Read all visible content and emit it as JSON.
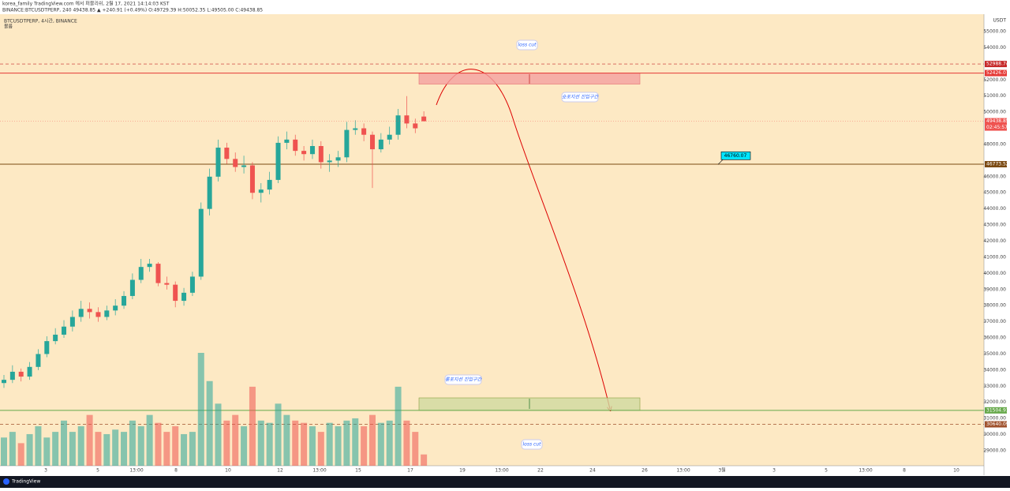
{
  "header": {
    "published": "korea_family TradingView.com 에서 퍼블리쉬, 2월 17, 2021 14:14:03 KST",
    "quote": "BINANCE:BTCUSDTPERP, 240 49438.85 ▲ +240.91 (+0.49%) O:49729.39 H:50052.35 L:49505.00 C:49438.85"
  },
  "footer": {
    "brand": "TradingView"
  },
  "chart_data": {
    "type": "candlestick",
    "title": "BTCUSDTPERP, 4시간, BINANCE",
    "volume_label": "볼륨",
    "currency": "USDT",
    "open": [
      33200,
      33400,
      33900,
      33600,
      34200,
      35000,
      35800,
      36200,
      36700,
      37300,
      37800,
      37600,
      37300,
      37700,
      38000,
      38600,
      39600,
      40400,
      40600,
      39400,
      39300,
      38300,
      38800,
      39800,
      44000,
      46000,
      47800,
      47100,
      46600,
      46700,
      45000,
      45200,
      45800,
      48100,
      48300,
      47600,
      47400,
      47900,
      46900,
      47000,
      47200,
      48900,
      49000,
      48600,
      47700,
      48300,
      48600,
      49800,
      49300,
      49729.39
    ],
    "high": [
      33700,
      34300,
      34100,
      34500,
      35300,
      36100,
      36600,
      37100,
      37700,
      38300,
      38200,
      37900,
      38000,
      38400,
      38900,
      40000,
      40900,
      40900,
      40700,
      39800,
      39500,
      39100,
      40100,
      44400,
      46500,
      48300,
      48100,
      47500,
      47300,
      46900,
      45600,
      46300,
      48500,
      48800,
      48600,
      47900,
      48300,
      48200,
      47400,
      47600,
      49400,
      49500,
      49300,
      48800,
      48700,
      49100,
      50200,
      51000,
      49600,
      50052.35
    ],
    "low": [
      32900,
      33200,
      33300,
      33400,
      34000,
      34800,
      35600,
      36000,
      36400,
      37000,
      37200,
      37000,
      37100,
      37400,
      37800,
      38400,
      39400,
      40100,
      39200,
      39000,
      37900,
      38000,
      38600,
      39600,
      43600,
      45700,
      46800,
      46300,
      46200,
      44600,
      44400,
      44900,
      45600,
      47700,
      47300,
      47000,
      47100,
      46500,
      46300,
      46600,
      46900,
      48600,
      48200,
      45300,
      47500,
      48000,
      48300,
      49000,
      48700,
      49505
    ],
    "close": [
      33400,
      33900,
      33600,
      34200,
      35000,
      35800,
      36200,
      36700,
      37300,
      37800,
      37600,
      37300,
      37700,
      38000,
      38600,
      39600,
      40400,
      40600,
      39400,
      39300,
      38300,
      38800,
      39800,
      44000,
      46000,
      47800,
      47100,
      46600,
      46700,
      45000,
      45200,
      45800,
      48100,
      48300,
      47600,
      47400,
      47900,
      46900,
      47000,
      47200,
      48900,
      49000,
      48600,
      47700,
      48300,
      48600,
      49800,
      49300,
      49000,
      49438.85
    ],
    "volume": [
      25,
      30,
      20,
      28,
      35,
      25,
      30,
      40,
      30,
      35,
      45,
      30,
      28,
      32,
      30,
      40,
      35,
      45,
      38,
      30,
      35,
      28,
      30,
      100,
      75,
      55,
      40,
      45,
      35,
      70,
      40,
      38,
      55,
      45,
      40,
      38,
      35,
      30,
      38,
      35,
      40,
      42,
      35,
      45,
      38,
      40,
      70,
      40,
      30,
      10
    ],
    "up_color": "#26a69a",
    "down_color": "#ef5350",
    "ylim": [
      56077,
      28070
    ],
    "yticks": [
      {
        "value": 55000,
        "label": "55000.00"
      },
      {
        "value": 54000,
        "label": "54000.00"
      },
      {
        "value": 52000,
        "label": "52000.00"
      },
      {
        "value": 51000,
        "label": "51000.00"
      },
      {
        "value": 50000,
        "label": "50000.00"
      },
      {
        "value": 48000,
        "label": "48000.00"
      },
      {
        "value": 46000,
        "label": "46000.00"
      },
      {
        "value": 45000,
        "label": "45000.00"
      },
      {
        "value": 44000,
        "label": "44000.00"
      },
      {
        "value": 43000,
        "label": "43000.00"
      },
      {
        "value": 42000,
        "label": "42000.00"
      },
      {
        "value": 41000,
        "label": "41000.00"
      },
      {
        "value": 40000,
        "label": "40000.00"
      },
      {
        "value": 39000,
        "label": "39000.00"
      },
      {
        "value": 38000,
        "label": "38000.00"
      },
      {
        "value": 37000,
        "label": "37000.00"
      },
      {
        "value": 36000,
        "label": "36000.00"
      },
      {
        "value": 35000,
        "label": "35000.00"
      },
      {
        "value": 34000,
        "label": "34000.00"
      },
      {
        "value": 33000,
        "label": "33000.00"
      },
      {
        "value": 32000,
        "label": "32000.00"
      },
      {
        "value": 31000,
        "label": "31000.00"
      },
      {
        "value": 30000,
        "label": "30000.00"
      },
      {
        "value": 29000,
        "label": "29000.00"
      }
    ],
    "x_labels": [
      "3",
      "5",
      "13:00",
      "8",
      "10",
      "12",
      "13:00",
      "15",
      "17",
      "19",
      "13:00",
      "22",
      "24",
      "26",
      "13:00",
      "3월",
      "3",
      "5",
      "13:00",
      "8",
      "10"
    ],
    "levels": [
      {
        "value": 52988.74,
        "color": "#c62828",
        "dashed": true
      },
      {
        "value": 52426.07,
        "color": "#e53935",
        "dashed": false
      },
      {
        "value": 46773.52,
        "color": "#7b4a12",
        "dashed": false
      },
      {
        "value": 31504.91,
        "color": "#66a84a",
        "dashed": false
      },
      {
        "value": 30640.09,
        "color": "#a0522d",
        "dashed": true
      }
    ],
    "last_price": {
      "value": 49438.85,
      "countdown": "02:45:57"
    },
    "zones": [
      {
        "label": "숏포지션 진입구간",
        "range": [
          51740,
          52426.07
        ],
        "color": "#f4a0a0"
      },
      {
        "label": "롱포지션 진입구간",
        "range": [
          32280,
          31504.91
        ],
        "color": "#cfd9a0"
      }
    ],
    "annotations": [
      "loss cut",
      "loss cut"
    ],
    "marker": {
      "value": 46760.07
    }
  }
}
